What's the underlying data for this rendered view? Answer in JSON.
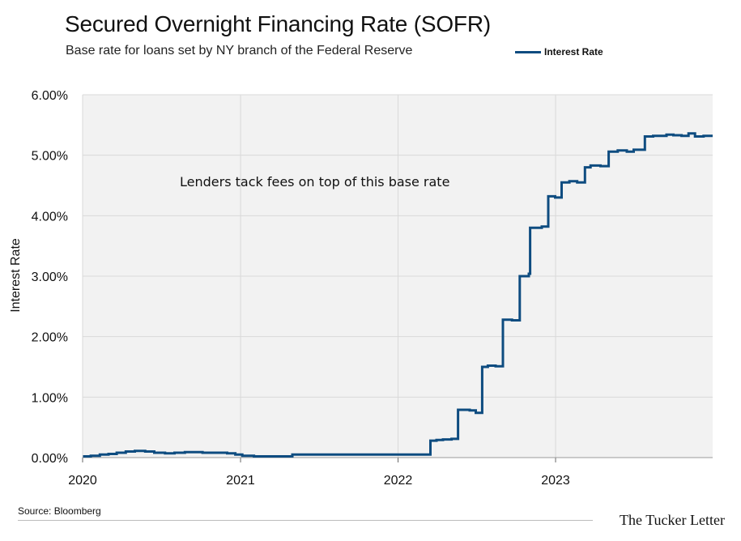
{
  "header": {
    "title": "Secured Overnight Financing Rate (SOFR)",
    "subtitle": "Base rate for loans set by NY branch of the Federal Reserve"
  },
  "footer": {
    "source": "Source: Bloomberg",
    "brand": "The Tucker Letter"
  },
  "colors": {
    "series": "#0e4c80",
    "plot_background": "#f2f2f2",
    "gridline": "#d9d9d9"
  },
  "chart_data": {
    "type": "line",
    "title": "Secured Overnight Financing Rate (SOFR)",
    "subtitle": "Base rate for loans set by NY branch of the Federal Reserve",
    "xlabel": "",
    "ylabel": "Interest Rate",
    "xlim": [
      "2020-01-01",
      "2023-12-31"
    ],
    "ylim": [
      0,
      6
    ],
    "x_ticks": [
      "2020",
      "2021",
      "2022",
      "2023"
    ],
    "y_ticks": [
      "0.00%",
      "1.00%",
      "2.00%",
      "3.00%",
      "4.00%",
      "5.00%",
      "6.00%"
    ],
    "grid": true,
    "legend_position": "top-right",
    "annotation": "Lenders tack fees on top of this base rate",
    "series": [
      {
        "name": "Interest Rate",
        "x": [
          "2020-01-02",
          "2020-01-20",
          "2020-02-10",
          "2020-03-01",
          "2020-03-20",
          "2020-04-10",
          "2020-05-01",
          "2020-05-25",
          "2020-06-15",
          "2020-07-10",
          "2020-08-01",
          "2020-08-25",
          "2020-09-15",
          "2020-10-05",
          "2020-10-25",
          "2020-11-15",
          "2020-12-01",
          "2020-12-20",
          "2021-01-05",
          "2021-02-01",
          "2021-03-01",
          "2021-04-01",
          "2021-05-01",
          "2021-06-01",
          "2021-07-01",
          "2021-08-01",
          "2021-09-01",
          "2021-10-01",
          "2021-11-01",
          "2021-12-01",
          "2021-12-31",
          "2022-01-15",
          "2022-02-15",
          "2022-03-17",
          "2022-03-31",
          "2022-04-15",
          "2022-05-05",
          "2022-05-20",
          "2022-06-16",
          "2022-06-30",
          "2022-07-15",
          "2022-07-28",
          "2022-08-15",
          "2022-09-01",
          "2022-09-22",
          "2022-10-10",
          "2022-10-31",
          "2022-11-03",
          "2022-11-30",
          "2022-12-15",
          "2022-12-31",
          "2023-01-15",
          "2023-02-02",
          "2023-02-20",
          "2023-03-10",
          "2023-03-23",
          "2023-04-15",
          "2023-05-04",
          "2023-05-25",
          "2023-06-15",
          "2023-07-01",
          "2023-07-27",
          "2023-08-15",
          "2023-09-01",
          "2023-09-15",
          "2023-10-01",
          "2023-10-20",
          "2023-11-05",
          "2023-11-20",
          "2023-12-10",
          "2023-12-31"
        ],
        "values": [
          0.02,
          0.03,
          0.05,
          0.06,
          0.08,
          0.1,
          0.11,
          0.1,
          0.08,
          0.07,
          0.08,
          0.09,
          0.09,
          0.08,
          0.08,
          0.08,
          0.07,
          0.05,
          0.03,
          0.02,
          0.02,
          0.02,
          0.05,
          0.05,
          0.05,
          0.05,
          0.05,
          0.05,
          0.05,
          0.05,
          0.05,
          0.05,
          0.05,
          0.28,
          0.29,
          0.3,
          0.31,
          0.79,
          0.78,
          0.74,
          1.5,
          1.52,
          1.51,
          2.28,
          2.27,
          3.0,
          3.04,
          3.8,
          3.82,
          4.32,
          4.3,
          4.55,
          4.57,
          4.55,
          4.8,
          4.83,
          4.82,
          5.06,
          5.08,
          5.06,
          5.09,
          5.31,
          5.32,
          5.32,
          5.34,
          5.33,
          5.32,
          5.36,
          5.31,
          5.32,
          5.32
        ]
      }
    ]
  }
}
